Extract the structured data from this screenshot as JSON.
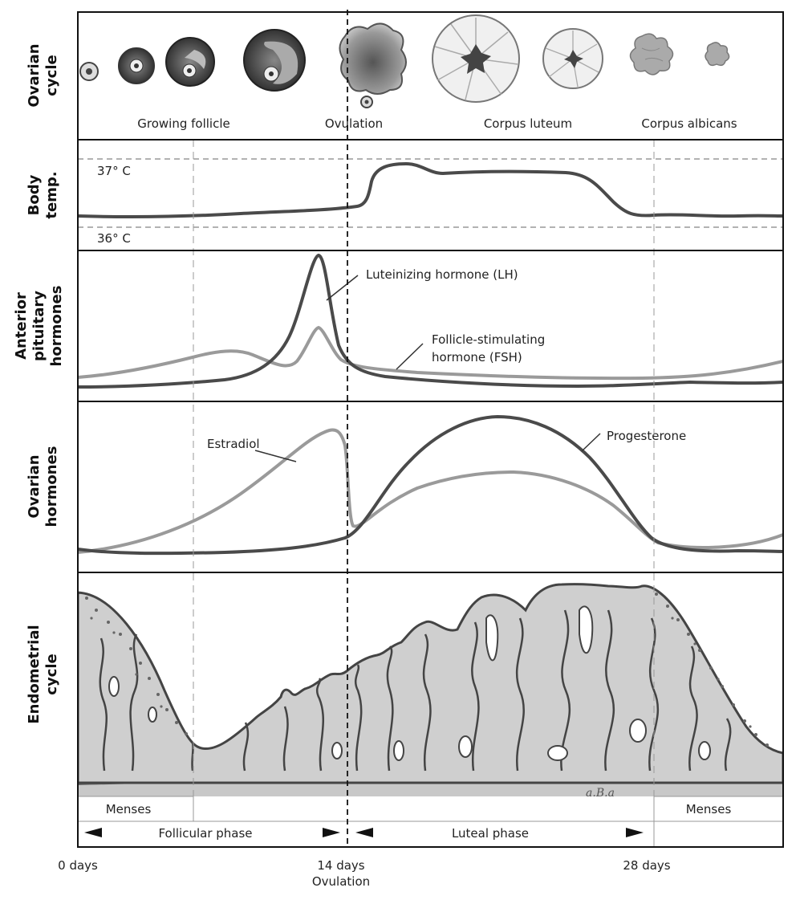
{
  "panels": {
    "ovarian_cycle": {
      "side_label": [
        "Ovarian",
        "cycle"
      ],
      "stage_labels": [
        "Growing follicle",
        "Ovulation",
        "Corpus luteum",
        "Corpus albicans"
      ]
    },
    "body_temp": {
      "side_label": [
        "Body",
        "temp."
      ],
      "ref_high": "37° C",
      "ref_low": "36° C"
    },
    "pituitary": {
      "side_label": [
        "Anterior",
        "pituitary",
        "hormones"
      ],
      "lh_label": "Luteinizing hormone (LH)",
      "fsh_label": [
        "Follicle-stimulating",
        "hormone (FSH)"
      ]
    },
    "ovarian_hormones": {
      "side_label": [
        "Ovarian",
        "hormones"
      ],
      "estradiol_label": "Estradiol",
      "progesterone_label": "Progesterone"
    },
    "endometrial": {
      "side_label": [
        "Endometrial",
        "cycle"
      ],
      "signature": "a.B.a",
      "menses_left": "Menses",
      "menses_right": "Menses",
      "follicular_phase": "Follicular phase",
      "luteal_phase": "Luteal phase"
    }
  },
  "axis": {
    "day0": "0 days",
    "day14": "14 days",
    "day14_sub": "Ovulation",
    "day28": "28 days"
  },
  "colors": {
    "dark_line": "#4a4a4a",
    "light_line": "#9a9a9a",
    "tissue_fill": "#cfcfcf",
    "frame": "#111111"
  }
}
